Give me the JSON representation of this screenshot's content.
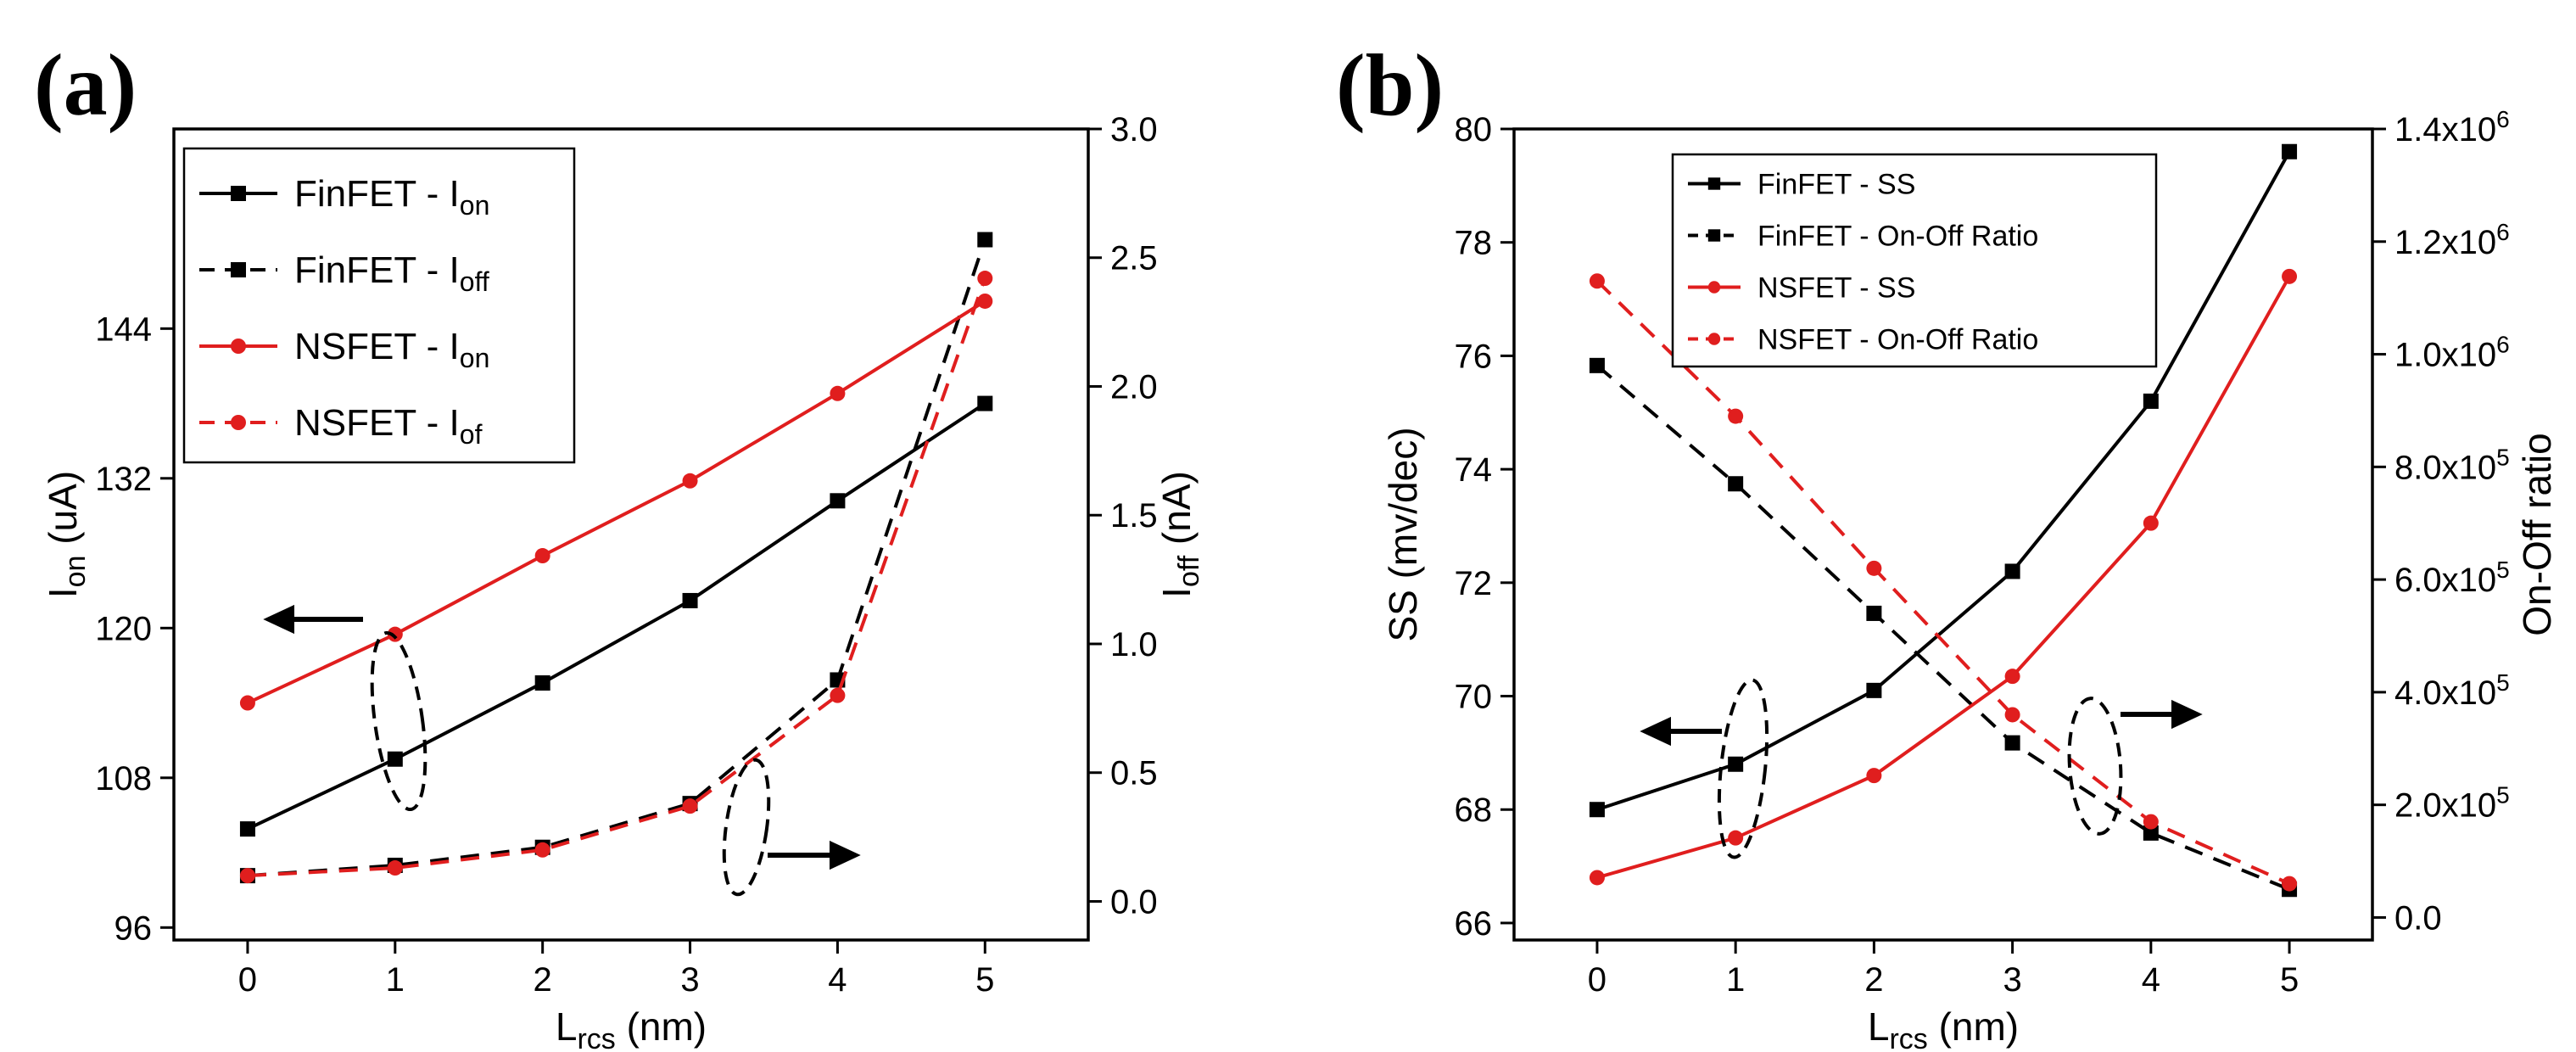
{
  "chart_data": [
    {
      "type": "line",
      "panel_label": "(a)",
      "x": [
        0,
        1,
        2,
        3,
        4,
        5
      ],
      "xlabel": "L",
      "xlabel_sub": "rcs",
      "xlabel_unit": " (nm)",
      "xticks": [
        "0",
        "1",
        "2",
        "3",
        "4",
        "5"
      ],
      "xlim": [
        -0.5,
        5.7
      ],
      "ylabel": "I",
      "ylabel_sub": "on",
      "ylabel_unit": " (uA)",
      "ylim": [
        95,
        160
      ],
      "yticks": [
        "96",
        "108",
        "120",
        "132",
        "144"
      ],
      "y2label": "I",
      "y2label_sub": "off",
      "y2label_unit": " (nA)",
      "y2lim": [
        -0.15,
        3.0
      ],
      "y2ticks": [
        "0.0",
        "0.5",
        "1.0",
        "1.5",
        "2.0",
        "2.5",
        "3.0"
      ],
      "legend_position": "top-left",
      "series": [
        {
          "name": "FinFET - I",
          "sub": "on",
          "axis": "left",
          "color": "#000000",
          "dash": false,
          "marker": "square",
          "values": [
            103.9,
            109.5,
            115.6,
            122.2,
            130.2,
            138.0
          ]
        },
        {
          "name": "FinFET - I",
          "sub": "off",
          "axis": "right",
          "color": "#000000",
          "dash": true,
          "marker": "square",
          "values": [
            0.1,
            0.14,
            0.21,
            0.38,
            0.86,
            2.57
          ]
        },
        {
          "name": "NSFET - I",
          "sub": "on",
          "axis": "left",
          "color": "#e01e1e",
          "dash": false,
          "marker": "circle",
          "values": [
            114.0,
            119.5,
            125.8,
            131.8,
            138.8,
            146.2
          ]
        },
        {
          "name": "NSFET - I",
          "sub": "of",
          "axis": "right",
          "color": "#e01e1e",
          "dash": true,
          "marker": "circle",
          "values": [
            0.1,
            0.13,
            0.2,
            0.37,
            0.8,
            2.42
          ]
        }
      ]
    },
    {
      "type": "line",
      "panel_label": "(b)",
      "x": [
        0,
        1,
        2,
        3,
        4,
        5
      ],
      "xlabel": "L",
      "xlabel_sub": "rcs",
      "xlabel_unit": " (nm)",
      "xticks": [
        "0",
        "1",
        "2",
        "3",
        "4",
        "5"
      ],
      "xlim": [
        -0.6,
        5.6
      ],
      "ylabel": "SS (mv/dec)",
      "ylim": [
        65.7,
        80
      ],
      "yticks": [
        "66",
        "68",
        "70",
        "72",
        "74",
        "76",
        "78",
        "80"
      ],
      "y2label": "On-Off ratio",
      "y2lim": [
        -40000,
        1400000
      ],
      "y2ticks": [
        {
          "base": "0.0",
          "exp": ""
        },
        {
          "base": "2.0x10",
          "exp": "5"
        },
        {
          "base": "4.0x10",
          "exp": "5"
        },
        {
          "base": "6.0x10",
          "exp": "5"
        },
        {
          "base": "8.0x10",
          "exp": "5"
        },
        {
          "base": "1.0x10",
          "exp": "6"
        },
        {
          "base": "1.2x10",
          "exp": "6"
        },
        {
          "base": "1.4x10",
          "exp": "6"
        }
      ],
      "legend_position": "top-left",
      "series": [
        {
          "name": "FinFET - SS",
          "axis": "left",
          "color": "#000000",
          "dash": false,
          "marker": "square",
          "values": [
            68.0,
            68.8,
            70.1,
            72.2,
            75.2,
            79.6
          ]
        },
        {
          "name": "FinFET - On-Off Ratio",
          "axis": "right",
          "color": "#000000",
          "dash": true,
          "marker": "square",
          "values": [
            980000,
            770000,
            540000,
            310000,
            150000,
            50000
          ]
        },
        {
          "name": "NSFET - SS",
          "axis": "left",
          "color": "#e01e1e",
          "dash": false,
          "marker": "circle",
          "values": [
            66.8,
            67.5,
            68.6,
            70.35,
            73.05,
            77.4
          ]
        },
        {
          "name": "NSFET - On-Off Ratio",
          "axis": "right",
          "color": "#e01e1e",
          "dash": true,
          "marker": "circle",
          "values": [
            1130000,
            890000,
            620000,
            360000,
            170000,
            60000
          ]
        }
      ]
    }
  ]
}
